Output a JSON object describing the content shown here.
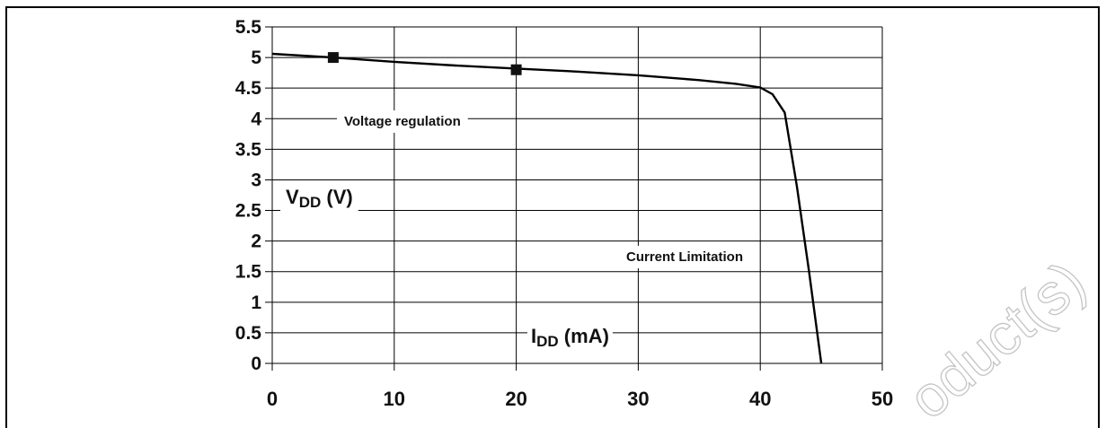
{
  "chart_data": {
    "type": "line",
    "x": [
      0,
      5,
      10,
      15,
      20,
      25,
      30,
      35,
      38,
      40,
      41,
      42,
      43,
      44,
      45
    ],
    "series": [
      {
        "values": [
          5.06,
          5.0,
          4.93,
          4.87,
          4.82,
          4.77,
          4.71,
          4.63,
          4.57,
          4.51,
          4.4,
          4.1,
          2.9,
          1.5,
          0.0
        ],
        "markers": [
          [
            5,
            5.0
          ],
          [
            20,
            4.8
          ]
        ]
      }
    ],
    "xlim": [
      0,
      50
    ],
    "ylim": [
      0,
      5.5
    ],
    "x_ticks": [
      "0",
      "10",
      "20",
      "30",
      "40",
      "50"
    ],
    "y_ticks": [
      "0",
      "0.5",
      "1",
      "1.5",
      "2",
      "2.5",
      "3",
      "3.5",
      "4",
      "4.5",
      "5",
      "5.5"
    ],
    "xlabel": {
      "main": "I",
      "sub": "DD",
      "unit": " (mA)"
    },
    "ylabel": {
      "main": "V",
      "sub": "DD",
      "unit": " (V)"
    },
    "annotations": [
      "Voltage regulation",
      "Current Limitation"
    ],
    "grid": true,
    "line_color": "#000000"
  },
  "watermark": "oduct(s)"
}
